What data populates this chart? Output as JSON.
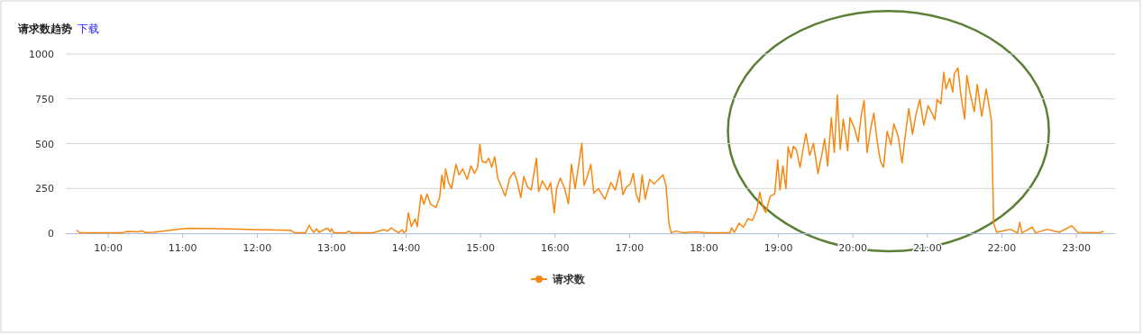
{
  "chart_data": {
    "type": "line",
    "title": "请求数趋势",
    "annotations": [
      "下载"
    ],
    "xlim": [
      9.43,
      23.52
    ],
    "xticks": [
      {
        "value": 10,
        "label": "10:00"
      },
      {
        "value": 11,
        "label": "11:00"
      },
      {
        "value": 12,
        "label": "12:00"
      },
      {
        "value": 13,
        "label": "13:00"
      },
      {
        "value": 14,
        "label": "14:00"
      },
      {
        "value": 15,
        "label": "15:00"
      },
      {
        "value": 16,
        "label": "16:00"
      },
      {
        "value": 17,
        "label": "17:00"
      },
      {
        "value": 18,
        "label": "18:00"
      },
      {
        "value": 19,
        "label": "19:00"
      },
      {
        "value": 20,
        "label": "20:00"
      },
      {
        "value": 21,
        "label": "21:00"
      },
      {
        "value": 22,
        "label": "22:00"
      },
      {
        "value": 23,
        "label": "23:00"
      }
    ],
    "ylim": [
      0,
      1000
    ],
    "yticks": [
      0,
      250,
      500,
      750,
      1000
    ],
    "grid": "y",
    "legend": "bottom",
    "series": [
      {
        "name": "请求数",
        "color": "#f7870f",
        "x": [
          9.58,
          9.62,
          10.2,
          10.25,
          10.4,
          10.45,
          10.5,
          10.6,
          11.0,
          11.1,
          11.5,
          12.0,
          12.45,
          12.5,
          12.65,
          12.7,
          12.73,
          12.76,
          12.8,
          12.83,
          12.92,
          12.95,
          12.98,
          13.0,
          13.03,
          13.2,
          13.23,
          13.26,
          13.55,
          13.6,
          13.7,
          13.75,
          13.8,
          13.85,
          13.9,
          13.95,
          13.97,
          14.0,
          14.03,
          14.07,
          14.12,
          14.15,
          14.2,
          14.24,
          14.28,
          14.33,
          14.4,
          14.45,
          14.48,
          14.51,
          14.53,
          14.57,
          14.61,
          14.67,
          14.71,
          14.76,
          14.82,
          14.87,
          14.92,
          14.96,
          14.99,
          15.02,
          15.07,
          15.11,
          15.15,
          15.19,
          15.23,
          15.29,
          15.33,
          15.39,
          15.45,
          15.49,
          15.54,
          15.58,
          15.63,
          15.68,
          15.75,
          15.78,
          15.83,
          15.9,
          15.94,
          15.99,
          16.02,
          16.07,
          16.13,
          16.18,
          16.22,
          16.27,
          16.3,
          16.36,
          16.39,
          16.44,
          16.48,
          16.52,
          16.58,
          16.67,
          16.75,
          16.81,
          16.87,
          16.91,
          16.96,
          17.01,
          17.05,
          17.09,
          17.13,
          17.17,
          17.21,
          17.27,
          17.33,
          17.39,
          17.45,
          17.49,
          17.53,
          17.56,
          17.63,
          17.71,
          17.91,
          18.0,
          18.35,
          18.37,
          18.41,
          18.47,
          18.53,
          18.59,
          18.65,
          18.71,
          18.75,
          18.79,
          18.83,
          18.89,
          18.95,
          18.99,
          19.02,
          19.06,
          19.1,
          19.13,
          19.17,
          19.2,
          19.24,
          19.29,
          19.33,
          19.37,
          19.42,
          19.47,
          19.53,
          19.58,
          19.62,
          19.66,
          19.71,
          19.75,
          19.79,
          19.83,
          19.87,
          19.93,
          19.96,
          20.02,
          20.07,
          20.11,
          20.15,
          20.19,
          20.24,
          20.28,
          20.33,
          20.37,
          20.41,
          20.46,
          20.51,
          20.55,
          20.61,
          20.66,
          20.71,
          20.75,
          20.8,
          20.85,
          20.9,
          20.95,
          21.01,
          21.06,
          21.1,
          21.13,
          21.18,
          21.22,
          21.25,
          21.3,
          21.34,
          21.36,
          21.41,
          21.45,
          21.5,
          21.53,
          21.57,
          21.63,
          21.67,
          21.73,
          21.79,
          21.83,
          21.86,
          21.89,
          21.93,
          22.11,
          22.21,
          22.24,
          22.27,
          22.41,
          22.45,
          22.61,
          22.77,
          22.94,
          23.02,
          23.3,
          23.36
        ],
        "values": [
          15,
          3,
          3,
          10,
          8,
          14,
          4,
          5,
          25,
          28,
          25,
          20,
          16,
          3,
          3,
          45,
          20,
          5,
          25,
          5,
          25,
          28,
          8,
          25,
          3,
          3,
          12,
          3,
          3,
          8,
          20,
          12,
          30,
          15,
          3,
          20,
          3,
          12,
          114,
          37,
          80,
          37,
          215,
          161,
          219,
          161,
          144,
          198,
          325,
          249,
          359,
          283,
          249,
          385,
          325,
          359,
          300,
          376,
          334,
          368,
          495,
          402,
          393,
          419,
          368,
          427,
          308,
          249,
          207,
          308,
          342,
          292,
          198,
          317,
          258,
          241,
          419,
          232,
          292,
          241,
          283,
          114,
          249,
          308,
          249,
          164,
          385,
          249,
          334,
          503,
          266,
          325,
          385,
          224,
          249,
          190,
          283,
          241,
          351,
          215,
          258,
          275,
          334,
          215,
          173,
          325,
          190,
          300,
          275,
          300,
          325,
          266,
          54,
          3,
          12,
          3,
          8,
          2,
          2,
          30,
          5,
          56,
          34,
          81,
          72,
          131,
          229,
          148,
          115,
          207,
          219,
          409,
          241,
          376,
          249,
          482,
          418,
          485,
          468,
          367,
          468,
          556,
          434,
          502,
          333,
          434,
          527,
          376,
          645,
          451,
          771,
          468,
          637,
          460,
          645,
          586,
          510,
          653,
          741,
          451,
          586,
          670,
          502,
          401,
          367,
          569,
          493,
          611,
          536,
          392,
          569,
          695,
          552,
          670,
          746,
          603,
          712,
          670,
          633,
          746,
          721,
          898,
          805,
          864,
          788,
          889,
          923,
          771,
          637,
          881,
          788,
          679,
          830,
          653,
          805,
          704,
          628,
          56,
          5,
          22,
          2,
          61,
          2,
          34,
          2,
          22,
          5,
          42,
          5,
          2,
          10
        ]
      }
    ]
  }
}
